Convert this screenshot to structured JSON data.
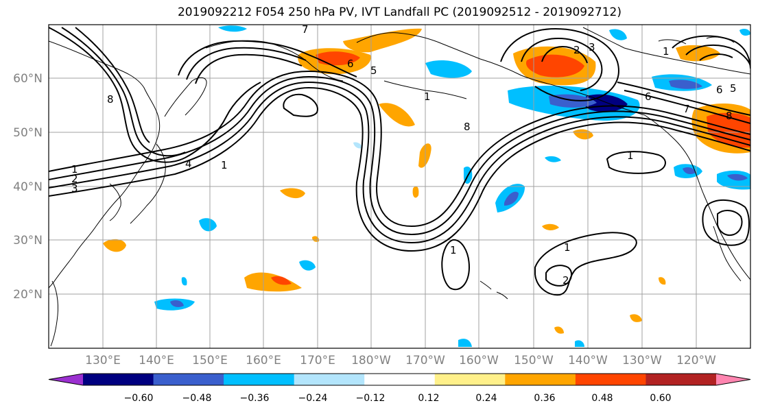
{
  "title": "2019092212 F054 250 hPa PV, IVT Landfall PC (2019092512 - 2019092712)",
  "map": {
    "lat_labels": [
      "60°N",
      "50°N",
      "40°N",
      "30°N",
      "20°N"
    ],
    "lon_labels": [
      "130°E",
      "140°E",
      "150°E",
      "160°E",
      "170°E",
      "180°W",
      "170°W",
      "160°W",
      "150°W",
      "140°W",
      "130°W",
      "120°W"
    ],
    "contour_labels": [
      "8",
      "7",
      "6",
      "5",
      "4",
      "1",
      "1",
      "2",
      "3",
      "1",
      "8",
      "1",
      "2",
      "3",
      "1",
      "6",
      "7",
      "8",
      "6",
      "5",
      "1",
      "1",
      "2"
    ],
    "grid": true
  },
  "colorbar": {
    "ticks": [
      "−0.60",
      "−0.48",
      "−0.36",
      "−0.24",
      "−0.12",
      "0.12",
      "0.24",
      "0.36",
      "0.48",
      "0.60"
    ],
    "colors": [
      "#9b30d0",
      "#000080",
      "#3a5fcd",
      "#00bfff",
      "#b3e5fc",
      "#ffffff",
      "#fff08a",
      "#ffa500",
      "#ff4500",
      "#b22222",
      "#ff85b0"
    ]
  }
}
